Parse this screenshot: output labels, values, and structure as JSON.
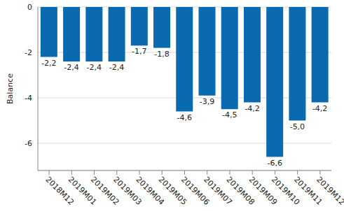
{
  "chart_data": {
    "type": "bar",
    "ylabel": "Balance",
    "categories": [
      "2018M12",
      "2019M01",
      "2019M02",
      "2019M03",
      "2019M04",
      "2019M05",
      "2019M06",
      "2019M07",
      "2019M08",
      "2019M09",
      "2019M10",
      "2019M11",
      "2019M12"
    ],
    "values": [
      -2.2,
      -2.4,
      -2.4,
      -2.4,
      -1.7,
      -1.8,
      -4.6,
      -3.9,
      -4.5,
      -4.2,
      -6.6,
      -5.0,
      -4.2
    ],
    "value_labels": [
      "-2,2",
      "-2,4",
      "-2,4",
      "-2,4",
      "-1,7",
      "-1,8",
      "-4,6",
      "-3,9",
      "-4,5",
      "-4,2",
      "-6,6",
      "-5,0",
      "-4,2"
    ],
    "color": "#0a6ab0",
    "ylim": [
      -7.2,
      0
    ],
    "yticks": [
      -6,
      -4,
      -2,
      0
    ],
    "grid": true,
    "data_labels": true
  }
}
